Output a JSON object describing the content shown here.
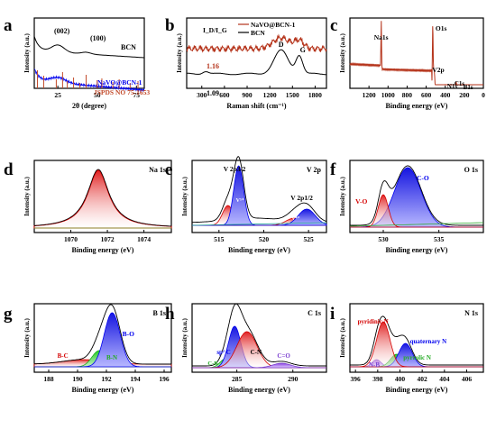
{
  "figure": {
    "panels": [
      {
        "id": "a",
        "letter": "a",
        "xlabel": "2θ (degree)",
        "ylabel": "Intensity (a.u.)",
        "xticks": [
          "25",
          "50",
          "75"
        ],
        "labels": [
          "(002)",
          "(100)",
          "BCN",
          "NaVO@BCN-1",
          "JSPDS NO 75-1653"
        ]
      },
      {
        "id": "b",
        "letter": "b",
        "xlabel": "Raman shift (cm⁻¹)",
        "ylabel": "Intensity (a.u.)",
        "xticks": [
          "300",
          "600",
          "900",
          "1200",
          "1500",
          "1800"
        ],
        "labels": [
          "I_D/I_G",
          "D",
          "G",
          "1.16",
          "1.09"
        ],
        "legend": [
          "NaVO@BCN-1",
          "BCN"
        ]
      },
      {
        "id": "c",
        "letter": "c",
        "xlabel": "Binding energy (eV)",
        "ylabel": "Intensity (a.u.)",
        "xticks": [
          "1200",
          "1000",
          "800",
          "600",
          "400",
          "200",
          "0"
        ],
        "labels": [
          "Na1s",
          "O1s",
          "V2p",
          "N1s",
          "C1s",
          "B1s"
        ]
      },
      {
        "id": "d",
        "letter": "d",
        "xlabel": "Binding energy (eV)",
        "ylabel": "Intensity (a.u.)",
        "xticks": [
          "1070",
          "1072",
          "1074"
        ],
        "labels": [
          "Na 1s"
        ]
      },
      {
        "id": "e",
        "letter": "e",
        "xlabel": "Binding energy (eV)",
        "ylabel": "Intensity (a.u.)",
        "xticks": [
          "515",
          "520",
          "525"
        ],
        "labels": [
          "V 2p",
          "V 2p3/2",
          "V 2p1/2",
          "V⁵⁺",
          "V⁴⁺"
        ]
      },
      {
        "id": "f",
        "letter": "f",
        "xlabel": "Binding energy (eV)",
        "ylabel": "Intensity (a.u.)",
        "xticks": [
          "530",
          "535"
        ],
        "labels": [
          "O 1s",
          "C-O",
          "V-O"
        ]
      },
      {
        "id": "g",
        "letter": "g",
        "xlabel": "Binding energy (eV)",
        "ylabel": "Intensity (a.u.)",
        "xticks": [
          "188",
          "190",
          "192",
          "194",
          "196"
        ],
        "labels": [
          "B 1s",
          "B-O",
          "B-C",
          "B-N"
        ]
      },
      {
        "id": "h",
        "letter": "h",
        "xlabel": "Binding energy (eV)",
        "ylabel": "Intensity (a.u.)",
        "xticks": [
          "285",
          "290"
        ],
        "labels": [
          "C 1s",
          "sp² C",
          "C-N",
          "C=O",
          "C-B"
        ]
      },
      {
        "id": "i",
        "letter": "i",
        "xlabel": "Binding energy (eV)",
        "ylabel": "Intensity (a.u.)",
        "xticks": [
          "396",
          "398",
          "400",
          "402",
          "404",
          "406"
        ],
        "labels": [
          "N 1s",
          "pyridinic N",
          "quaternary N",
          "pyrrolic N",
          "N-B"
        ]
      }
    ],
    "colors": {
      "red": "#d40000",
      "darkred": "#b5331a",
      "blue": "#0000ee",
      "green": "#22aa22",
      "navy": "#2b3bd8",
      "purple": "#7b3fd0"
    }
  },
  "chart_data": [
    {
      "type": "line",
      "panel": "a",
      "xlabel": "2θ (degree)",
      "ylabel": "Intensity (a.u.)",
      "xlim": [
        10,
        80
      ],
      "series": [
        {
          "name": "BCN",
          "x": [
            10,
            25,
            43,
            80
          ]
        },
        {
          "name": "NaVO@BCN-1",
          "x": [
            10,
            25,
            80
          ]
        },
        {
          "name": "JSPDS NO 75-1653",
          "x": [
            12,
            16,
            24,
            28,
            31,
            35,
            39,
            43,
            50,
            53,
            60,
            64,
            71,
            76
          ]
        }
      ]
    },
    {
      "type": "line",
      "panel": "b",
      "xlabel": "Raman shift (cm⁻¹)",
      "ylabel": "Intensity (a.u.)",
      "xlim": [
        100,
        1950
      ],
      "series": [
        {
          "name": "NaVO@BCN-1",
          "x": [
            1350,
            1590
          ]
        },
        {
          "name": "BCN",
          "x": [
            1350,
            1590
          ]
        }
      ],
      "annotations": {
        "NaVO@BCN-1": "1.16",
        "BCN": "1.09"
      }
    },
    {
      "type": "line",
      "panel": "c",
      "xlabel": "Binding energy (eV)",
      "xlim": [
        1400,
        0
      ],
      "peaks": {
        "Na1s": 1071,
        "O1s": 531,
        "V2p": 517,
        "N1s": 399,
        "C1s": 285,
        "B1s": 192
      }
    },
    {
      "type": "area",
      "panel": "d",
      "xlabel": "Binding energy (eV)",
      "xlim": [
        1068,
        1075.5
      ],
      "peaks": {
        "Na 1s": 1071.5
      }
    },
    {
      "type": "area",
      "panel": "e",
      "xlabel": "Binding energy (eV)",
      "xlim": [
        512,
        527
      ],
      "peaks": {
        "V⁵⁺ 2p3/2": 517.2,
        "V⁴⁺ 2p3/2": 516.0,
        "V⁵⁺ 2p1/2": 524.8,
        "V⁴⁺ 2p1/2": 523.4
      }
    },
    {
      "type": "area",
      "panel": "f",
      "xlabel": "Binding energy (eV)",
      "xlim": [
        527,
        539
      ],
      "peaks": {
        "V-O": 530,
        "C-O": 532.2
      }
    },
    {
      "type": "area",
      "panel": "g",
      "xlabel": "Binding energy (eV)",
      "xlim": [
        187,
        196.5
      ],
      "peaks": {
        "B-C": 190.4,
        "B-N": 191.5,
        "B-O": 192.4
      }
    },
    {
      "type": "area",
      "panel": "h",
      "xlabel": "Binding energy (eV)",
      "xlim": [
        281,
        293
      ],
      "peaks": {
        "C-B": 284,
        "sp² C": 284.8,
        "C-N": 285.9,
        "C=O": 289
      }
    },
    {
      "type": "area",
      "panel": "i",
      "xlabel": "Binding energy (eV)",
      "xlim": [
        395.5,
        407.5
      ],
      "peaks": {
        "N-B": 397.9,
        "pyridinic N": 398.5,
        "pyrrolic N": 399.7,
        "quaternary N": 400.5
      }
    }
  ]
}
